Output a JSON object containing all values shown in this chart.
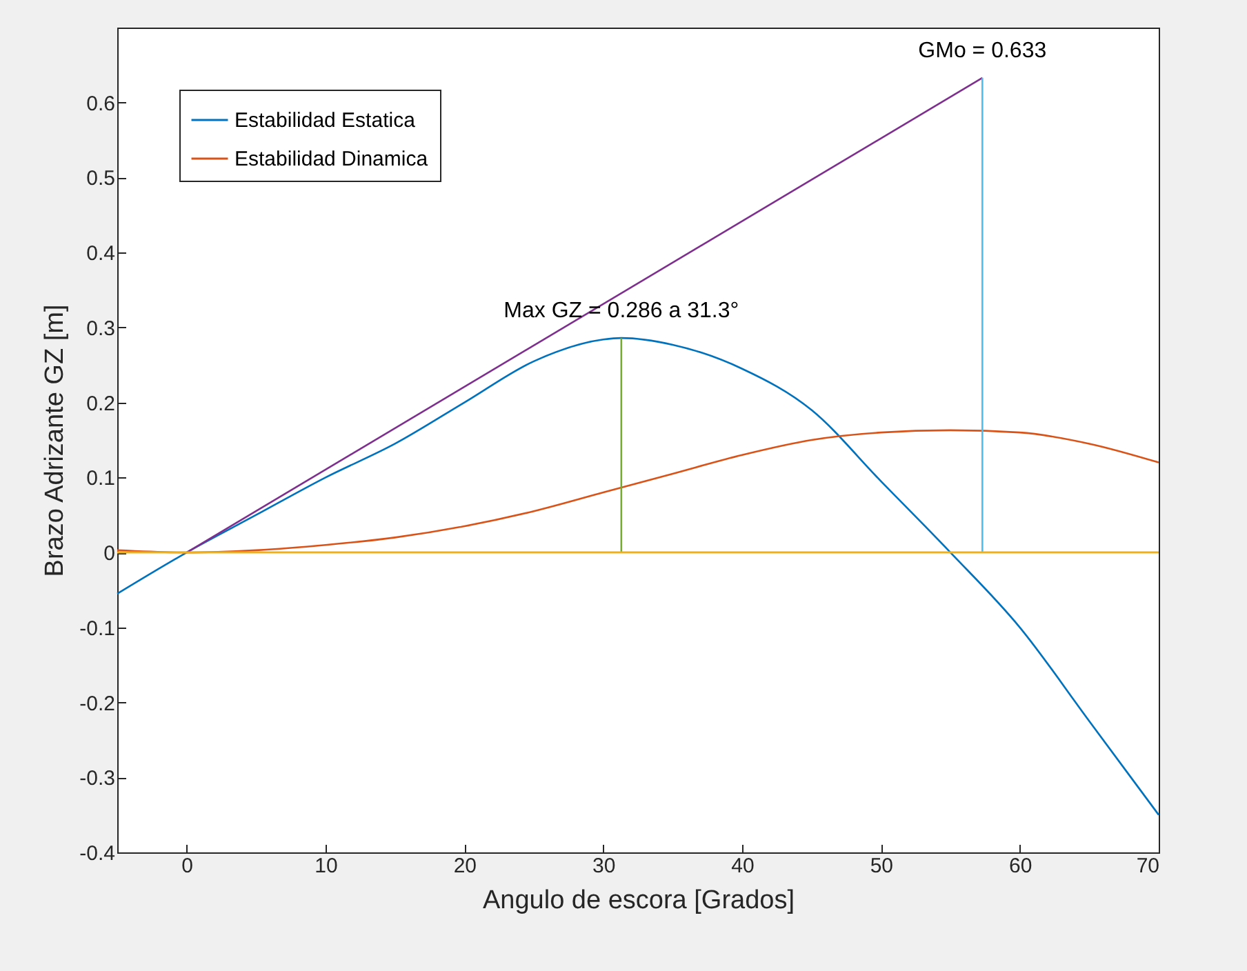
{
  "chart_data": {
    "type": "line",
    "xlabel": "Angulo de escora [Grados]",
    "ylabel": "Brazo Adrizante GZ [m]",
    "xlim": [
      -5,
      70
    ],
    "xticks": [
      0,
      10,
      20,
      30,
      40,
      50,
      60,
      70
    ],
    "ylim": [
      -0.4,
      0.7
    ],
    "yticks": [
      -0.4,
      -0.3,
      -0.2,
      -0.1,
      0,
      0.1,
      0.2,
      0.3,
      0.4,
      0.5,
      0.6
    ],
    "series": [
      {
        "name": "Estabilidad Estatica",
        "color": "#0072bd",
        "x": [
          -5,
          0,
          5,
          10,
          15,
          20,
          25,
          30,
          31.3,
          35,
          40,
          45,
          50,
          55,
          60,
          65,
          70
        ],
        "values": [
          -0.055,
          0,
          0.05,
          0.1,
          0.145,
          0.2,
          0.255,
          0.284,
          0.286,
          0.277,
          0.245,
          0.19,
          0.095,
          0.0,
          -0.1,
          -0.225,
          -0.35
        ]
      },
      {
        "name": "Estabilidad Dinamica",
        "color": "#d95319",
        "x": [
          -5,
          0,
          5,
          10,
          15,
          20,
          25,
          30,
          35,
          40,
          45,
          50,
          55,
          60,
          65,
          70
        ],
        "values": [
          0.003,
          0,
          0.003,
          0.01,
          0.02,
          0.035,
          0.055,
          0.08,
          0.105,
          0.13,
          0.15,
          0.16,
          0.163,
          0.16,
          0.145,
          0.12
        ]
      },
      {
        "color": "#7e2f8e",
        "x": [
          0,
          57.3
        ],
        "values": [
          0,
          0.633
        ]
      },
      {
        "color": "#4dbeee",
        "x": [
          57.3,
          57.3
        ],
        "values": [
          0,
          0.633
        ]
      },
      {
        "color": "#77ac30",
        "x": [
          31.3,
          31.3
        ],
        "values": [
          0,
          0.286
        ]
      }
    ],
    "ref_lines": [
      {
        "axis": "y",
        "value": 0,
        "color": "#edb120"
      }
    ],
    "annotations": [
      {
        "text": "Max GZ = 0.286 a 31.3°",
        "x": 31.3,
        "y": 0.286
      },
      {
        "text": "GMo = 0.633",
        "x": 57.3,
        "y": 0.633
      }
    ],
    "legend": "top left",
    "grid": false
  }
}
